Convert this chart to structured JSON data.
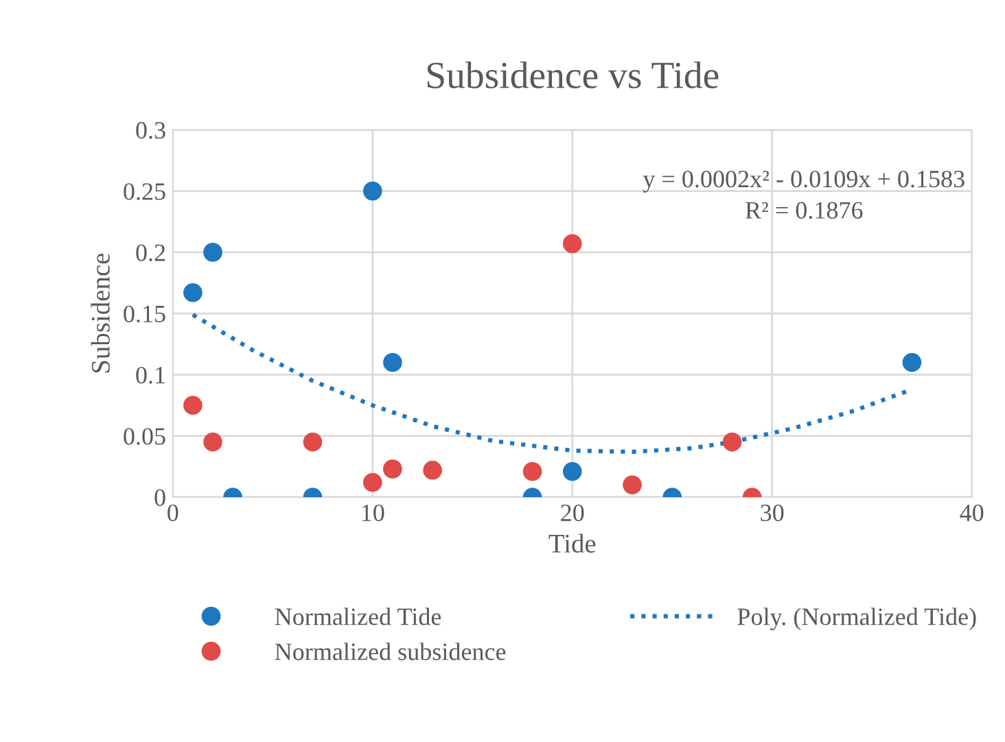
{
  "chart_data": {
    "type": "scatter",
    "title": "Subsidence vs Tide",
    "xlabel": "Tide",
    "ylabel": "Subsidence",
    "xlim": [
      0,
      40
    ],
    "xticks": [
      0,
      10,
      20,
      30,
      40
    ],
    "ylim": [
      0,
      0.3
    ],
    "yticks": [
      0,
      0.05,
      0.1,
      0.15,
      0.2,
      0.25,
      0.3
    ],
    "grid": true,
    "legend": "bottom",
    "marker": "circle",
    "annotations": [
      "y = 0.0002x² - 0.0109x + 0.1583",
      "R² = 0.1876"
    ],
    "series": [
      {
        "name": "Normalized Tide",
        "color": "#1f77c0",
        "x": [
          1,
          2,
          3,
          7,
          10,
          11,
          18,
          20,
          25,
          37
        ],
        "values": [
          0.167,
          0.2,
          0,
          0,
          0.25,
          0.11,
          0,
          0.021,
          0,
          0.11
        ]
      },
      {
        "name": "Normalized subsidence",
        "color": "#e04a48",
        "x": [
          1,
          2,
          7,
          10,
          11,
          13,
          18,
          20,
          23,
          28,
          29
        ],
        "values": [
          0.075,
          0.045,
          0.045,
          0.012,
          0.023,
          0.022,
          0.021,
          0.207,
          0.01,
          0.045,
          0
        ]
      },
      {
        "name": "Poly. (Normalized Tide)",
        "type": "line",
        "line_style": "dotted",
        "marker": "none",
        "color": "#1f77c0",
        "x": [
          1,
          4,
          7,
          10,
          13,
          16,
          20,
          23,
          26,
          28,
          31,
          34,
          37
        ],
        "values": [
          0.149,
          0.12,
          0.095,
          0.075,
          0.058,
          0.046,
          0.038,
          0.037,
          0.04,
          0.045,
          0.056,
          0.07,
          0.088
        ]
      }
    ]
  }
}
